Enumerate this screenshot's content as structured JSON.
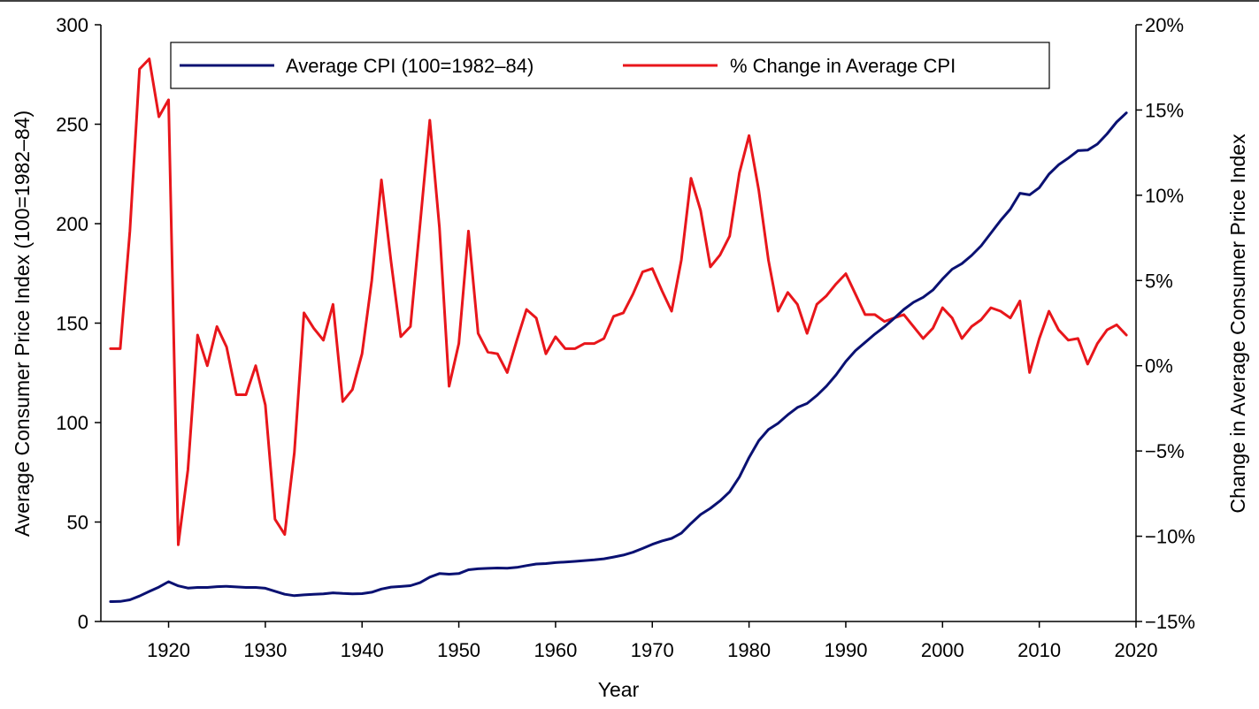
{
  "chart_data": {
    "type": "line",
    "title": "",
    "xlabel": "Year",
    "ylabel": "Average Consumer Price Index (100=1982–84)",
    "ylabel_right": "Change in Average Consumer Price Index",
    "xlim": [
      1913,
      2020
    ],
    "ylim": [
      0,
      300
    ],
    "ylim_right": [
      -15,
      20
    ],
    "x_ticks": [
      "1920",
      "1930",
      "1940",
      "1950",
      "1960",
      "1970",
      "1980",
      "1990",
      "2000",
      "2010",
      "2020"
    ],
    "y_ticks": [
      "0",
      "50",
      "100",
      "150",
      "200",
      "250",
      "300"
    ],
    "y_ticks_right": [
      "−15%",
      "−10%",
      "−5%",
      "0%",
      "5%",
      "10%",
      "15%",
      "20%"
    ],
    "grid": false,
    "legend_position": "top",
    "x": [
      1914,
      1915,
      1916,
      1917,
      1918,
      1919,
      1920,
      1921,
      1922,
      1923,
      1924,
      1925,
      1926,
      1927,
      1928,
      1929,
      1930,
      1931,
      1932,
      1933,
      1934,
      1935,
      1936,
      1937,
      1938,
      1939,
      1940,
      1941,
      1942,
      1943,
      1944,
      1945,
      1946,
      1947,
      1948,
      1949,
      1950,
      1951,
      1952,
      1953,
      1954,
      1955,
      1956,
      1957,
      1958,
      1959,
      1960,
      1961,
      1962,
      1963,
      1964,
      1965,
      1966,
      1967,
      1968,
      1969,
      1970,
      1971,
      1972,
      1973,
      1974,
      1975,
      1976,
      1977,
      1978,
      1979,
      1980,
      1981,
      1982,
      1983,
      1984,
      1985,
      1986,
      1987,
      1988,
      1989,
      1990,
      1991,
      1992,
      1993,
      1994,
      1995,
      1996,
      1997,
      1998,
      1999,
      2000,
      2001,
      2002,
      2003,
      2004,
      2005,
      2006,
      2007,
      2008,
      2009,
      2010,
      2011,
      2012,
      2013,
      2014,
      2015,
      2016,
      2017,
      2018,
      2019
    ],
    "series": [
      {
        "name": "Average CPI (100=1982–84)",
        "axis": "left",
        "color": "#0a1172",
        "values": [
          10.0,
          10.1,
          10.9,
          12.8,
          15.1,
          17.3,
          20.0,
          17.9,
          16.8,
          17.1,
          17.1,
          17.5,
          17.7,
          17.4,
          17.1,
          17.1,
          16.7,
          15.2,
          13.7,
          13.0,
          13.4,
          13.7,
          13.9,
          14.4,
          14.1,
          13.9,
          14.0,
          14.7,
          16.3,
          17.3,
          17.6,
          18.0,
          19.5,
          22.3,
          24.1,
          23.8,
          24.1,
          26.0,
          26.5,
          26.7,
          26.9,
          26.8,
          27.2,
          28.1,
          28.9,
          29.1,
          29.6,
          29.9,
          30.2,
          30.6,
          31.0,
          31.5,
          32.4,
          33.4,
          34.8,
          36.7,
          38.8,
          40.5,
          41.8,
          44.4,
          49.3,
          53.8,
          56.9,
          60.6,
          65.2,
          72.6,
          82.4,
          90.9,
          96.5,
          99.6,
          103.9,
          107.6,
          109.6,
          113.6,
          118.3,
          124.0,
          130.7,
          136.2,
          140.3,
          144.5,
          148.2,
          152.4,
          156.9,
          160.5,
          163.0,
          166.6,
          172.2,
          177.1,
          179.9,
          184.0,
          188.9,
          195.3,
          201.6,
          207.3,
          215.3,
          214.5,
          218.1,
          224.9,
          229.6,
          233.0,
          236.7,
          237.0,
          240.0,
          245.1,
          251.1,
          255.7
        ]
      },
      {
        "name": "% Change in Average CPI",
        "axis": "right",
        "color": "#e8161b",
        "values": [
          1.0,
          1.0,
          7.9,
          17.4,
          18.0,
          14.6,
          15.6,
          -10.5,
          -6.1,
          1.8,
          0.0,
          2.3,
          1.1,
          -1.7,
          -1.7,
          0.0,
          -2.3,
          -9.0,
          -9.9,
          -5.1,
          3.1,
          2.2,
          1.5,
          3.6,
          -2.1,
          -1.4,
          0.7,
          5.0,
          10.9,
          6.1,
          1.7,
          2.3,
          8.3,
          14.4,
          8.1,
          -1.2,
          1.3,
          7.9,
          1.9,
          0.8,
          0.7,
          -0.4,
          1.5,
          3.3,
          2.8,
          0.7,
          1.7,
          1.0,
          1.0,
          1.3,
          1.3,
          1.6,
          2.9,
          3.1,
          4.2,
          5.5,
          5.7,
          4.4,
          3.2,
          6.2,
          11.0,
          9.1,
          5.8,
          6.5,
          7.6,
          11.3,
          13.5,
          10.3,
          6.2,
          3.2,
          4.3,
          3.6,
          1.9,
          3.6,
          4.1,
          4.8,
          5.4,
          4.2,
          3.0,
          3.0,
          2.6,
          2.8,
          3.0,
          2.3,
          1.6,
          2.2,
          3.4,
          2.8,
          1.6,
          2.3,
          2.7,
          3.4,
          3.2,
          2.8,
          3.8,
          -0.4,
          1.6,
          3.2,
          2.1,
          1.5,
          1.6,
          0.1,
          1.3,
          2.1,
          2.4,
          1.8
        ]
      }
    ]
  }
}
